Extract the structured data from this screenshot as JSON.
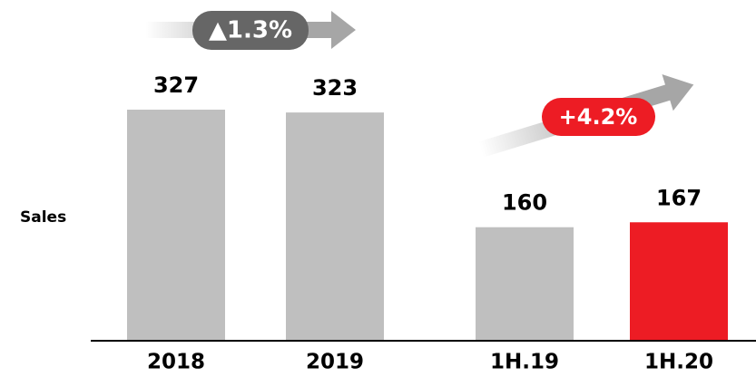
{
  "chart_data": {
    "type": "bar",
    "y_label": "Sales",
    "categories": [
      "2018",
      "2019",
      "1H.19",
      "1H.20"
    ],
    "values": [
      327,
      323,
      160,
      167
    ],
    "colors": [
      "#bfbfbf",
      "#bfbfbf",
      "#bfbfbf",
      "#ed1c24"
    ],
    "annotations": [
      "▲1.3%",
      "+4.2%"
    ]
  }
}
